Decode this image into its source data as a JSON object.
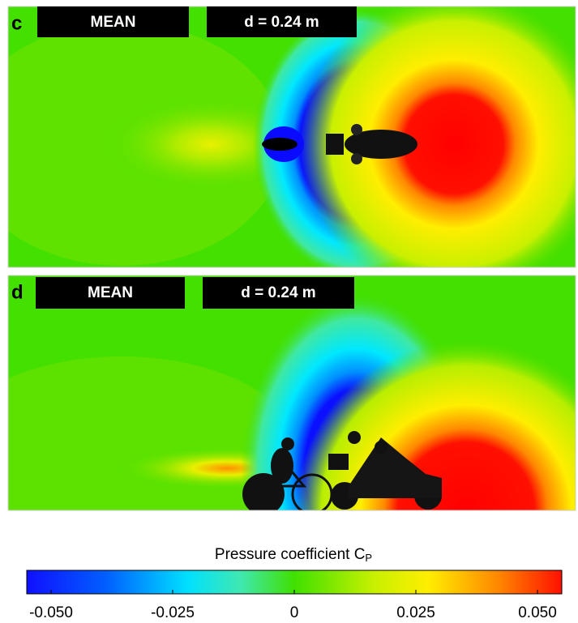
{
  "panels": [
    {
      "letter": "c",
      "tag": "MEAN",
      "distance": "d = 0.24 m"
    },
    {
      "letter": "d",
      "tag": "MEAN",
      "distance": "d = 0.24 m"
    }
  ],
  "colorbar": {
    "title": "Pressure coefficient C",
    "title_subscript": "P",
    "lim": [
      -0.055,
      0.055
    ],
    "ticks": [
      {
        "value": -0.05,
        "label": "-0.050"
      },
      {
        "value": -0.025,
        "label": "-0.025"
      },
      0,
      {
        "value": 0.025,
        "label": "0.025"
      },
      {
        "value": 0.05,
        "label": "0.050"
      }
    ]
  }
}
